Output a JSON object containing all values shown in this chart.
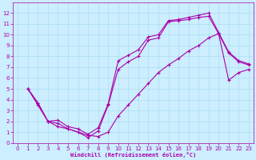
{
  "title": "",
  "xlabel": "Windchill (Refroidissement éolien,°C)",
  "ylabel": "",
  "background_color": "#cceeff",
  "grid_color": "#aaddee",
  "line_color": "#aa00aa",
  "xlim": [
    -0.5,
    23.5
  ],
  "ylim": [
    0,
    13
  ],
  "xticks": [
    0,
    1,
    2,
    3,
    4,
    5,
    6,
    7,
    8,
    9,
    10,
    11,
    12,
    13,
    14,
    15,
    16,
    17,
    18,
    19,
    20,
    21,
    22,
    23
  ],
  "yticks": [
    0,
    1,
    2,
    3,
    4,
    5,
    6,
    7,
    8,
    9,
    10,
    11,
    12
  ],
  "line1_x": [
    1,
    2,
    3,
    4,
    5,
    6,
    7,
    8,
    9,
    10,
    11,
    12,
    13,
    14,
    15,
    16,
    17,
    18,
    19,
    20,
    21,
    22,
    23
  ],
  "line1_y": [
    5,
    3.7,
    2.0,
    1.5,
    1.3,
    1.0,
    0.5,
    1.1,
    3.5,
    6.8,
    7.5,
    8.0,
    9.5,
    9.7,
    11.2,
    11.3,
    11.4,
    11.6,
    11.7,
    10.1,
    8.3,
    7.5,
    7.2
  ],
  "line2_x": [
    1,
    2,
    3,
    4,
    5,
    6,
    7,
    8,
    9,
    10,
    11,
    12,
    13,
    14,
    15,
    16,
    17,
    18,
    19,
    20,
    21,
    22,
    23
  ],
  "line2_y": [
    5,
    3.7,
    2.0,
    2.1,
    1.5,
    1.3,
    0.8,
    1.4,
    3.6,
    7.6,
    8.1,
    8.6,
    9.8,
    10.0,
    11.3,
    11.4,
    11.6,
    11.8,
    12.0,
    10.2,
    8.4,
    7.6,
    7.3
  ],
  "line3_x": [
    1,
    2,
    3,
    4,
    5,
    6,
    7,
    8,
    9,
    10,
    11,
    12,
    13,
    14,
    15,
    16,
    17,
    18,
    19,
    20,
    21,
    22,
    23
  ],
  "line3_y": [
    5,
    3.5,
    2.0,
    1.8,
    1.3,
    1.0,
    0.7,
    0.6,
    1.0,
    2.5,
    3.5,
    4.5,
    5.5,
    6.5,
    7.2,
    7.8,
    8.5,
    9.0,
    9.7,
    10.1,
    5.8,
    6.5,
    6.8
  ],
  "marker": "+",
  "markersize": 3,
  "linewidth": 0.8,
  "tick_fontsize": 5,
  "xlabel_fontsize": 5
}
